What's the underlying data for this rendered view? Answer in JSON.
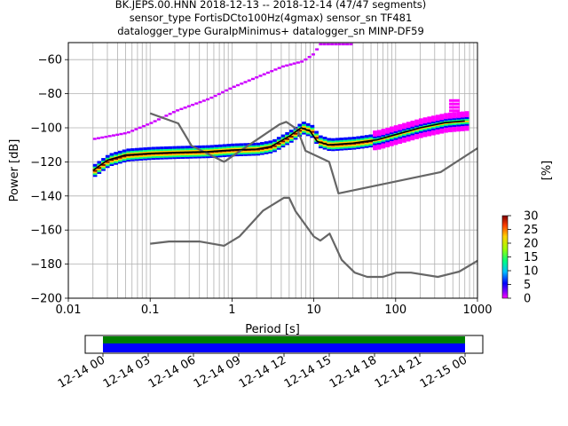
{
  "title_lines": [
    "BK.JEPS.00.HNN   2018-12-13 -- 2018-12-14  (47/47 segments)",
    "sensor_type FortisDCto100Hz(4gmax) sensor_sn TF481",
    "datalogger_type GuralpMinimus+ datalogger_sn MINP-DF59"
  ],
  "chart_data": {
    "type": "heatmap",
    "xlabel": "Period [s]",
    "ylabel": "Power [dB]",
    "xscale": "log",
    "xlim": [
      0.01,
      1000
    ],
    "ylim": [
      -200,
      -50
    ],
    "grid": true,
    "x_ticks": [
      0.01,
      0.1,
      1,
      10,
      100,
      1000
    ],
    "x_tick_labels": [
      "0.01",
      "0.1",
      "1",
      "10",
      "100",
      "1000"
    ],
    "y_ticks": [
      -200,
      -180,
      -160,
      -140,
      -120,
      -100,
      -80,
      -60
    ],
    "y_tick_labels": [
      "−200",
      "−180",
      "−160",
      "−140",
      "−120",
      "−100",
      "−80",
      "−60"
    ],
    "colorbar": {
      "label": "[%]",
      "range": [
        0,
        30
      ],
      "ticks": [
        0,
        5,
        10,
        15,
        20,
        25,
        30
      ],
      "tick_labels": [
        "0",
        "5",
        "10",
        "15",
        "20",
        "25",
        "30"
      ]
    },
    "series": [
      {
        "role": "NLNM",
        "color": "#666666",
        "x": [
          0.1,
          0.17,
          0.4,
          0.8,
          1.24,
          2.4,
          4.3,
          5,
          6,
          10,
          12,
          15.6,
          21.9,
          31.6,
          45,
          70,
          101,
          154,
          328,
          600,
          1000
        ],
        "y": [
          -168,
          -166.7,
          -166.7,
          -169.2,
          -163.7,
          -148.6,
          -141.1,
          -141.1,
          -149,
          -163.8,
          -166.2,
          -162.1,
          -177.5,
          -185,
          -187.5,
          -187.5,
          -185,
          -185,
          -187.5,
          -184.4,
          -178
        ]
      },
      {
        "role": "NHNM",
        "color": "#666666",
        "x": [
          0.1,
          0.22,
          0.32,
          0.8,
          3.8,
          4.6,
          6.3,
          7.9,
          15.4,
          20,
          354.8,
          1000
        ],
        "y": [
          -91.5,
          -97.4,
          -110.5,
          -120,
          -98,
          -96.5,
          -101,
          -113.5,
          -120,
          -138.5,
          -126,
          -112
        ]
      },
      {
        "role": "mode",
        "color": "#000000",
        "x": [
          0.02,
          0.03,
          0.05,
          0.1,
          0.2,
          0.5,
          1,
          2,
          3,
          5,
          7,
          9,
          11,
          15,
          30,
          60,
          100,
          200,
          400,
          700
        ],
        "y": [
          -125,
          -119,
          -116,
          -115,
          -114.5,
          -114,
          -113,
          -112.5,
          -111,
          -105,
          -100,
          -102,
          -108,
          -110,
          -109,
          -107,
          -104,
          -100,
          -97,
          -96
        ]
      },
      {
        "role": "high-outlier",
        "color": "#cc00ff",
        "x": [
          0.02,
          0.05,
          0.1,
          0.2,
          0.5,
          1,
          2,
          4,
          7,
          10,
          11,
          30
        ],
        "y": [
          -106.5,
          -103,
          -97,
          -90,
          -83,
          -76,
          -70,
          -64,
          -61,
          -56,
          -51,
          -51
        ]
      }
    ]
  },
  "time_bar": {
    "tick_labels": [
      "12-14 00",
      "12-14 03",
      "12-14 06",
      "12-14 09",
      "12-14 12",
      "12-14 15",
      "12-14 18",
      "12-14 21",
      "12-15 00"
    ],
    "colors": {
      "upper": "#007f00",
      "lower": "#0000ff"
    }
  }
}
